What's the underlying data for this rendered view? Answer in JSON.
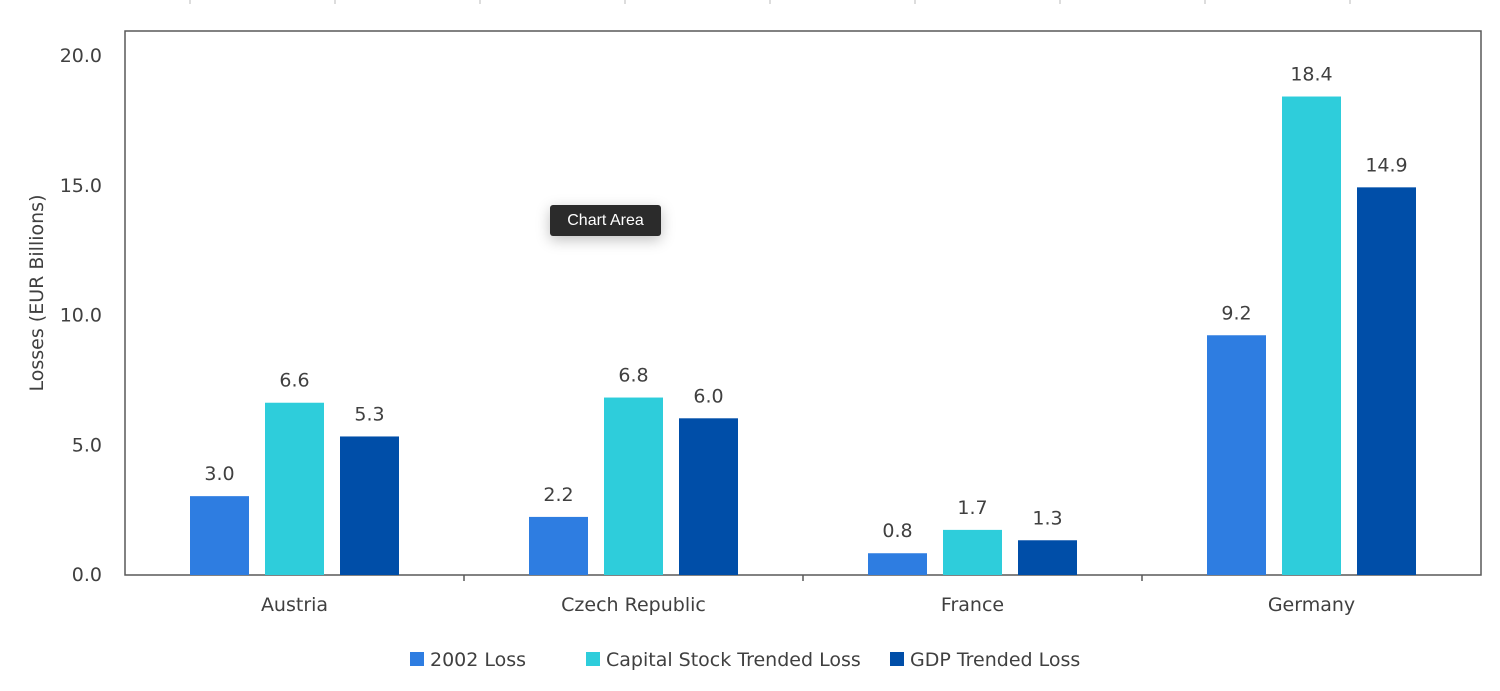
{
  "tooltip": "Chart Area",
  "chart_data": {
    "type": "bar",
    "title": "",
    "xlabel": "",
    "ylabel": "Losses (EUR Billions)",
    "ylim": [
      0,
      20
    ],
    "yticks": [
      "0.0",
      "5.0",
      "10.0",
      "15.0",
      "20.0"
    ],
    "grid": false,
    "legend_position": "bottom",
    "categories": [
      "Austria",
      "Czech Republic",
      "France",
      "Germany"
    ],
    "series": [
      {
        "name": "2002 Loss",
        "color": "#2E7DE1",
        "values": [
          3.0,
          2.2,
          0.8,
          9.2
        ]
      },
      {
        "name": "Capital Stock Trended Loss",
        "color": "#2ECDDB",
        "values": [
          6.6,
          6.8,
          1.7,
          18.4
        ]
      },
      {
        "name": "GDP Trended Loss",
        "color": "#004EA8",
        "values": [
          5.3,
          6.0,
          1.3,
          14.9
        ]
      }
    ]
  }
}
